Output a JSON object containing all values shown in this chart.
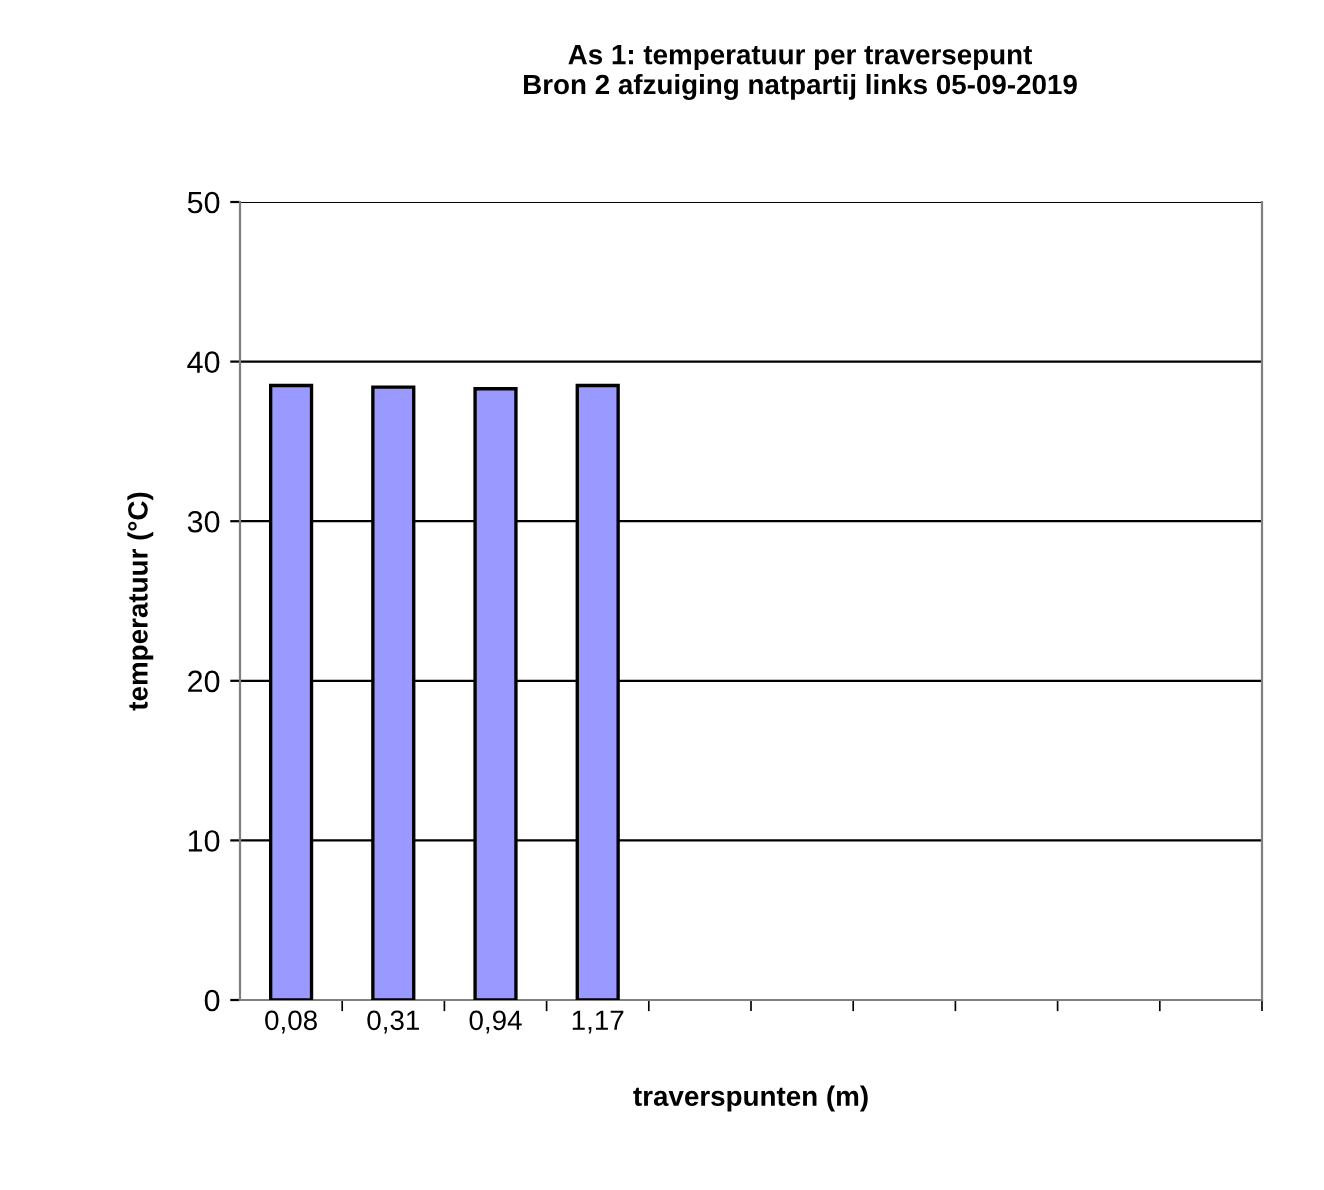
{
  "chart_data": {
    "type": "bar",
    "title": "As 1: temperatuur per traversepunt\nBron 2 afzuiging natpartij links 05-09-2019",
    "xlabel": "traverspunten (m)",
    "ylabel": "temperatuur (°C)",
    "categories": [
      "0,08",
      "0,31",
      "0,94",
      "1,17",
      null,
      null,
      null,
      null,
      null,
      null
    ],
    "values": [
      38.5,
      38.4,
      38.3,
      38.5,
      null,
      null,
      null,
      null,
      null,
      null
    ],
    "color": "#9999ff",
    "ylim": [
      0,
      50
    ],
    "yticks": [
      0,
      10,
      20,
      30,
      40,
      50
    ],
    "grid": "y"
  }
}
